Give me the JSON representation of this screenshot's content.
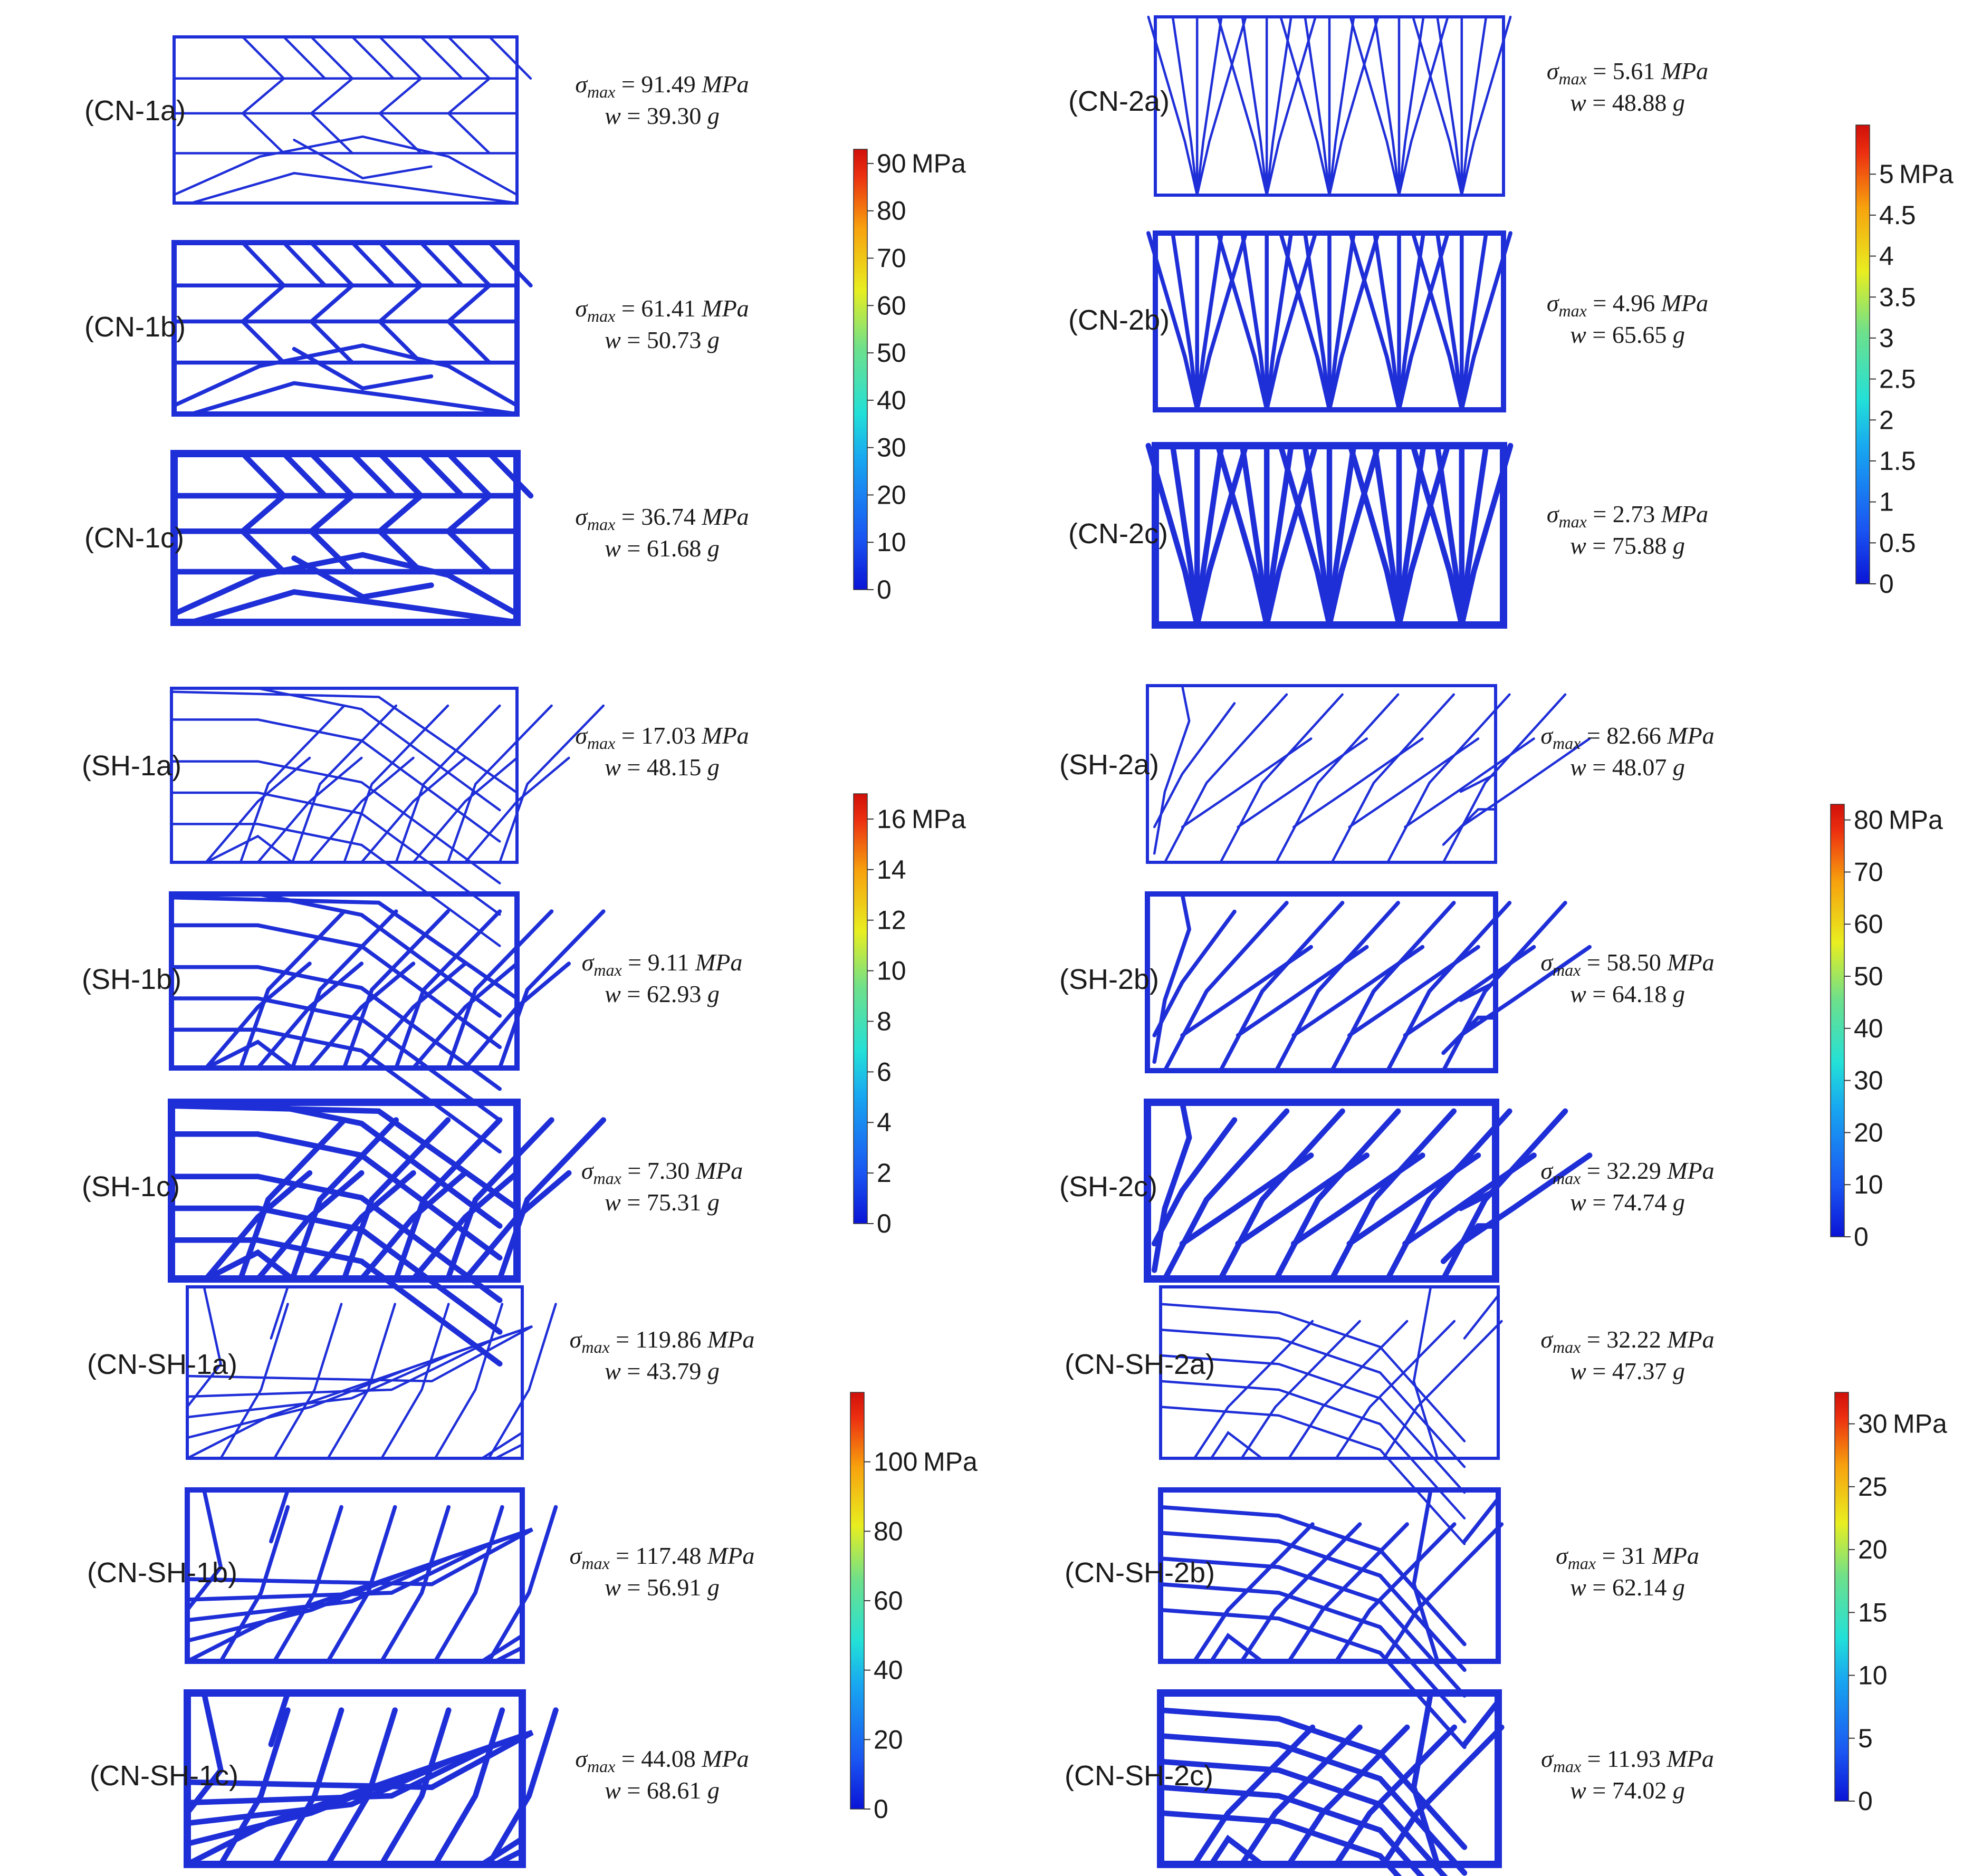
{
  "figure": {
    "colors": {
      "structure": "#1f2fd8",
      "colormap": [
        "#0a14d6",
        "#1a56f2",
        "#18a8f0",
        "#22e0d8",
        "#6fe08a",
        "#e8ee20",
        "#f7a20e",
        "#ec2e10",
        "#d0100a"
      ]
    },
    "panels": [
      {
        "id": "CN-1a",
        "label": "(CN-1a)",
        "sigma": "91.49",
        "weight": "39.30",
        "pattern": "cn1",
        "level": 1,
        "group": "g1"
      },
      {
        "id": "CN-1b",
        "label": "(CN-1b)",
        "sigma": "61.41",
        "weight": "50.73",
        "pattern": "cn1",
        "level": 2,
        "group": "g1"
      },
      {
        "id": "CN-1c",
        "label": "(CN-1c)",
        "sigma": "36.74",
        "weight": "61.68",
        "pattern": "cn1",
        "level": 3,
        "group": "g1"
      },
      {
        "id": "CN-2a",
        "label": "(CN-2a)",
        "sigma": "5.61",
        "weight": "48.88",
        "pattern": "cn2",
        "level": 1,
        "group": "g2"
      },
      {
        "id": "CN-2b",
        "label": "(CN-2b)",
        "sigma": "4.96",
        "weight": "65.65",
        "pattern": "cn2",
        "level": 2,
        "group": "g2"
      },
      {
        "id": "CN-2c",
        "label": "(CN-2c)",
        "sigma": "2.73",
        "weight": "75.88",
        "pattern": "cn2",
        "level": 3,
        "group": "g2"
      },
      {
        "id": "SH-1a",
        "label": "(SH-1a)",
        "sigma": "17.03",
        "weight": "48.15",
        "pattern": "sh1",
        "level": 1,
        "group": "g3"
      },
      {
        "id": "SH-1b",
        "label": "(SH-1b)",
        "sigma": "9.11",
        "weight": "62.93",
        "pattern": "sh1",
        "level": 2,
        "group": "g3"
      },
      {
        "id": "SH-1c",
        "label": "(SH-1c)",
        "sigma": "7.30",
        "weight": "75.31",
        "pattern": "sh1",
        "level": 3,
        "group": "g3"
      },
      {
        "id": "SH-2a",
        "label": "(SH-2a)",
        "sigma": "82.66",
        "weight": "48.07",
        "pattern": "sh2",
        "level": 1,
        "group": "g4"
      },
      {
        "id": "SH-2b",
        "label": "(SH-2b)",
        "sigma": "58.50",
        "weight": "64.18",
        "pattern": "sh2",
        "level": 2,
        "group": "g4"
      },
      {
        "id": "SH-2c",
        "label": "(SH-2c)",
        "sigma": "32.29",
        "weight": "74.74",
        "pattern": "sh2",
        "level": 3,
        "group": "g4"
      },
      {
        "id": "CN-SH-1a",
        "label": "(CN-SH-1a)",
        "sigma": "119.86",
        "weight": "43.79",
        "pattern": "cnsh1",
        "level": 1,
        "group": "g5"
      },
      {
        "id": "CN-SH-1b",
        "label": "(CN-SH-1b)",
        "sigma": "117.48",
        "weight": "56.91",
        "pattern": "cnsh1",
        "level": 2,
        "group": "g5"
      },
      {
        "id": "CN-SH-1c",
        "label": "(CN-SH-1c)",
        "sigma": "44.08",
        "weight": "68.61",
        "pattern": "cnsh1",
        "level": 3,
        "group": "g5"
      },
      {
        "id": "CN-SH-2a",
        "label": "(CN-SH-2a)",
        "sigma": "32.22",
        "weight": "47.37",
        "pattern": "cnsh2",
        "level": 1,
        "group": "g6"
      },
      {
        "id": "CN-SH-2b",
        "label": "(CN-SH-2b)",
        "sigma": "31",
        "weight": "62.14",
        "pattern": "cnsh2",
        "level": 2,
        "group": "g6"
      },
      {
        "id": "CN-SH-2c",
        "label": "(CN-SH-2c)",
        "sigma": "11.93",
        "weight": "74.02",
        "pattern": "cnsh2",
        "level": 3,
        "group": "g6"
      }
    ],
    "equation": {
      "sigma_symbol": "σ",
      "subscript": "max",
      "weight_symbol": "w",
      "equals": "=",
      "stress_unit": "MPa",
      "weight_unit": "g"
    },
    "colorbars": [
      {
        "id": "cb1",
        "ticks": [
          "90",
          "80",
          "70",
          "60",
          "50",
          "40",
          "30",
          "20",
          "10",
          "0"
        ],
        "unit": "MPa",
        "max": 93
      },
      {
        "id": "cb2",
        "ticks": [
          "5",
          "4.5",
          "4",
          "3.5",
          "3",
          "2.5",
          "2",
          "1.5",
          "1",
          "0.5",
          "0"
        ],
        "unit": "MPa",
        "max": 5.6
      },
      {
        "id": "cb3",
        "ticks": [
          "16",
          "14",
          "12",
          "10",
          "8",
          "6",
          "4",
          "2",
          "0"
        ],
        "unit": "MPa",
        "max": 17
      },
      {
        "id": "cb4",
        "ticks": [
          "80",
          "70",
          "60",
          "50",
          "40",
          "30",
          "20",
          "10",
          "0"
        ],
        "unit": "MPa",
        "max": 83
      },
      {
        "id": "cb5",
        "ticks": [
          "100",
          "80",
          "60",
          "40",
          "20",
          "0"
        ],
        "unit": "MPa",
        "max": 120
      },
      {
        "id": "cb6",
        "ticks": [
          "30",
          "25",
          "20",
          "15",
          "10",
          "5",
          "0"
        ],
        "unit": "MPa",
        "max": 32.5
      }
    ]
  }
}
